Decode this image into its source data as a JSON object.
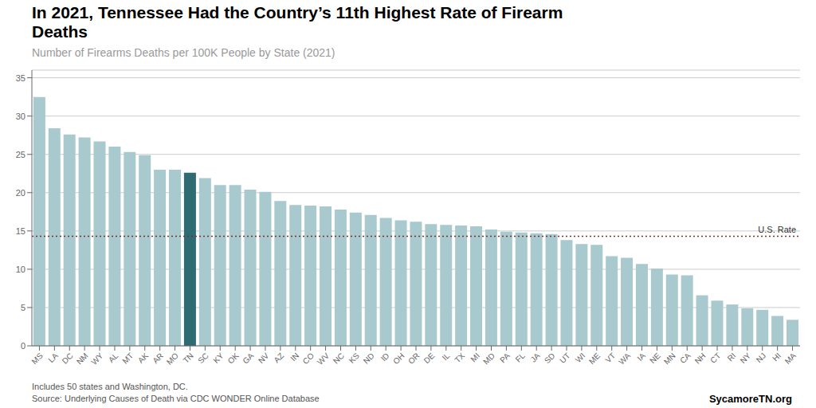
{
  "chart_data": {
    "type": "bar",
    "title": "In 2021, Tennessee Had the Country’s 11th Highest Rate of Firearm\nDeaths",
    "subtitle": "Number of Firearms Deaths per 100K People by State (2021)",
    "footer_left": "Includes 50 states and Washington, DC.\nSource: Underlying Causes of Death via CDC WONDER Online Database",
    "footer_right": "SycamoreTN.org",
    "categories": [
      "MS",
      "LA",
      "DC",
      "NM",
      "WY",
      "AL",
      "MT",
      "AK",
      "AR",
      "MO",
      "TN",
      "SC",
      "KY",
      "OK",
      "GA",
      "NV",
      "AZ",
      "IN",
      "CO",
      "WV",
      "NC",
      "KS",
      "ND",
      "ID",
      "OH",
      "OR",
      "DE",
      "IL",
      "TX",
      "MI",
      "MD",
      "PA",
      "FL",
      "JA",
      "SD",
      "UT",
      "WI",
      "ME",
      "VT",
      "WA",
      "IA",
      "NE",
      "MN",
      "CA",
      "NH",
      "CT",
      "RI",
      "NY",
      "NJ",
      "HI",
      "MA"
    ],
    "values": [
      32.5,
      28.4,
      27.6,
      27.2,
      26.7,
      26.0,
      25.3,
      24.9,
      23.0,
      23.0,
      22.6,
      21.9,
      21.0,
      21.0,
      20.4,
      20.1,
      18.9,
      18.4,
      18.3,
      18.2,
      17.8,
      17.4,
      17.1,
      16.7,
      16.4,
      16.2,
      15.9,
      15.8,
      15.7,
      15.6,
      15.2,
      14.9,
      14.8,
      14.7,
      14.6,
      13.8,
      13.3,
      13.2,
      11.7,
      11.5,
      10.7,
      10.1,
      9.3,
      9.2,
      6.6,
      5.9,
      5.4,
      4.9,
      4.7,
      3.9,
      3.4
    ],
    "colors": [
      "#a8c9ce",
      "#a8c9ce",
      "#a8c9ce",
      "#a8c9ce",
      "#a8c9ce",
      "#a8c9ce",
      "#a8c9ce",
      "#a8c9ce",
      "#a8c9ce",
      "#a8c9ce",
      "#2e6b72",
      "#a8c9ce",
      "#a8c9ce",
      "#a8c9ce",
      "#a8c9ce",
      "#a8c9ce",
      "#a8c9ce",
      "#a8c9ce",
      "#a8c9ce",
      "#a8c9ce",
      "#a8c9ce",
      "#a8c9ce",
      "#a8c9ce",
      "#a8c9ce",
      "#a8c9ce",
      "#a8c9ce",
      "#a8c9ce",
      "#a8c9ce",
      "#a8c9ce",
      "#a8c9ce",
      "#a8c9ce",
      "#a8c9ce",
      "#a8c9ce",
      "#a8c9ce",
      "#a8c9ce",
      "#a8c9ce",
      "#a8c9ce",
      "#a8c9ce",
      "#a8c9ce",
      "#a8c9ce",
      "#a8c9ce",
      "#a8c9ce",
      "#a8c9ce",
      "#a8c9ce",
      "#a8c9ce",
      "#a8c9ce",
      "#a8c9ce",
      "#a8c9ce",
      "#a8c9ce",
      "#a8c9ce",
      "#a8c9ce"
    ],
    "reference_line": {
      "value": 14.3,
      "label": "U.S. Rate",
      "color": "#7a3030",
      "line_style": "dotted"
    },
    "ylim": [
      0,
      36
    ],
    "yticks": [
      0,
      5,
      10,
      15,
      20,
      25,
      30,
      35
    ],
    "grid": true
  }
}
